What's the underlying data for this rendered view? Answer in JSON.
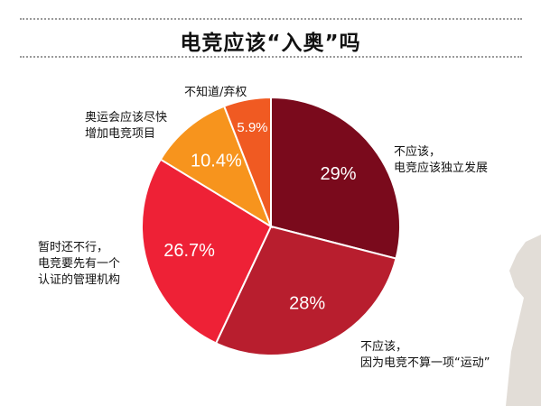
{
  "title": "电竞应该“入奥”吗",
  "chart_data": {
    "type": "pie",
    "title": "电竞应该“入奥”吗",
    "slices": [
      {
        "label_lines": [
          "不应该，",
          "电竞应该独立发展"
        ],
        "value": 29,
        "display": "29%",
        "color": "#7a0a1c"
      },
      {
        "label_lines": [
          "不应该，",
          "因为电竞不算一项“运动”"
        ],
        "value": 28,
        "display": "28%",
        "color": "#b81e2e"
      },
      {
        "label_lines": [
          "暂时还不行，",
          "电竞要先有一个",
          "认证的管理机构"
        ],
        "value": 26.7,
        "display": "26.7%",
        "color": "#ee2136"
      },
      {
        "label_lines": [
          "奥运会应该尽快",
          "增加电竞项目"
        ],
        "value": 10.4,
        "display": "10.4%",
        "color": "#f7941d"
      },
      {
        "label_lines": [
          "不知道/弃权"
        ],
        "value": 5.9,
        "display": "5.9%",
        "color": "#f05a22"
      }
    ]
  }
}
